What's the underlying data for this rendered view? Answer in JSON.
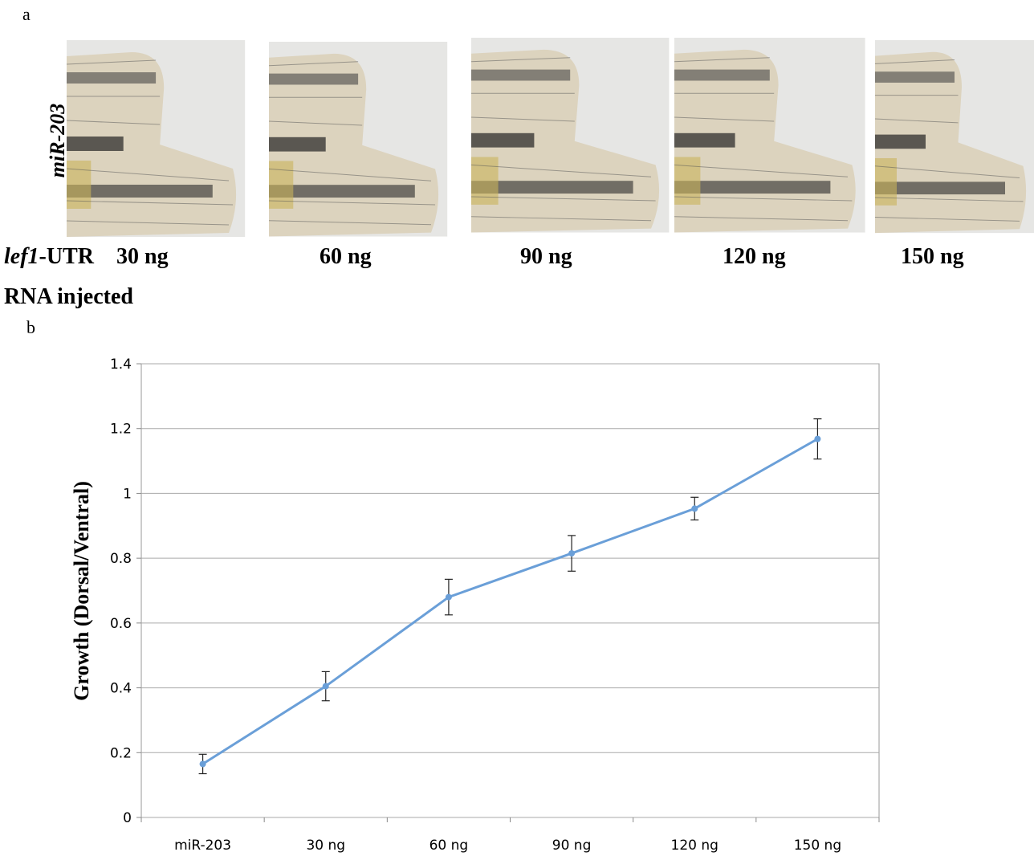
{
  "panel_a": {
    "label": "a",
    "row_label": "miR-203",
    "gene": "lef1",
    "gene_suffix": "-UTR",
    "doses": [
      "30 ng",
      "60 ng",
      "90 ng",
      "120 ng",
      "150 ng"
    ],
    "footer": "RNA injected"
  },
  "chart_data": {
    "type": "line",
    "panel_label": "b",
    "y_label": "Growth (Dorsal/Ventral)",
    "categories": [
      "miR-203",
      "30 ng",
      "60 ng",
      "90 ng",
      "120 ng",
      "150 ng"
    ],
    "series": [
      {
        "color": "#6a9fd8",
        "values": [
          0.165,
          0.405,
          0.68,
          0.815,
          0.953,
          1.168
        ],
        "errors": [
          0.03,
          0.045,
          0.055,
          0.055,
          0.035,
          0.062
        ]
      }
    ],
    "ylim": [
      0,
      1.4
    ],
    "yticks": [
      0,
      0.2,
      0.4,
      0.6,
      0.8,
      1,
      1.2,
      1.4
    ],
    "grid": true
  }
}
